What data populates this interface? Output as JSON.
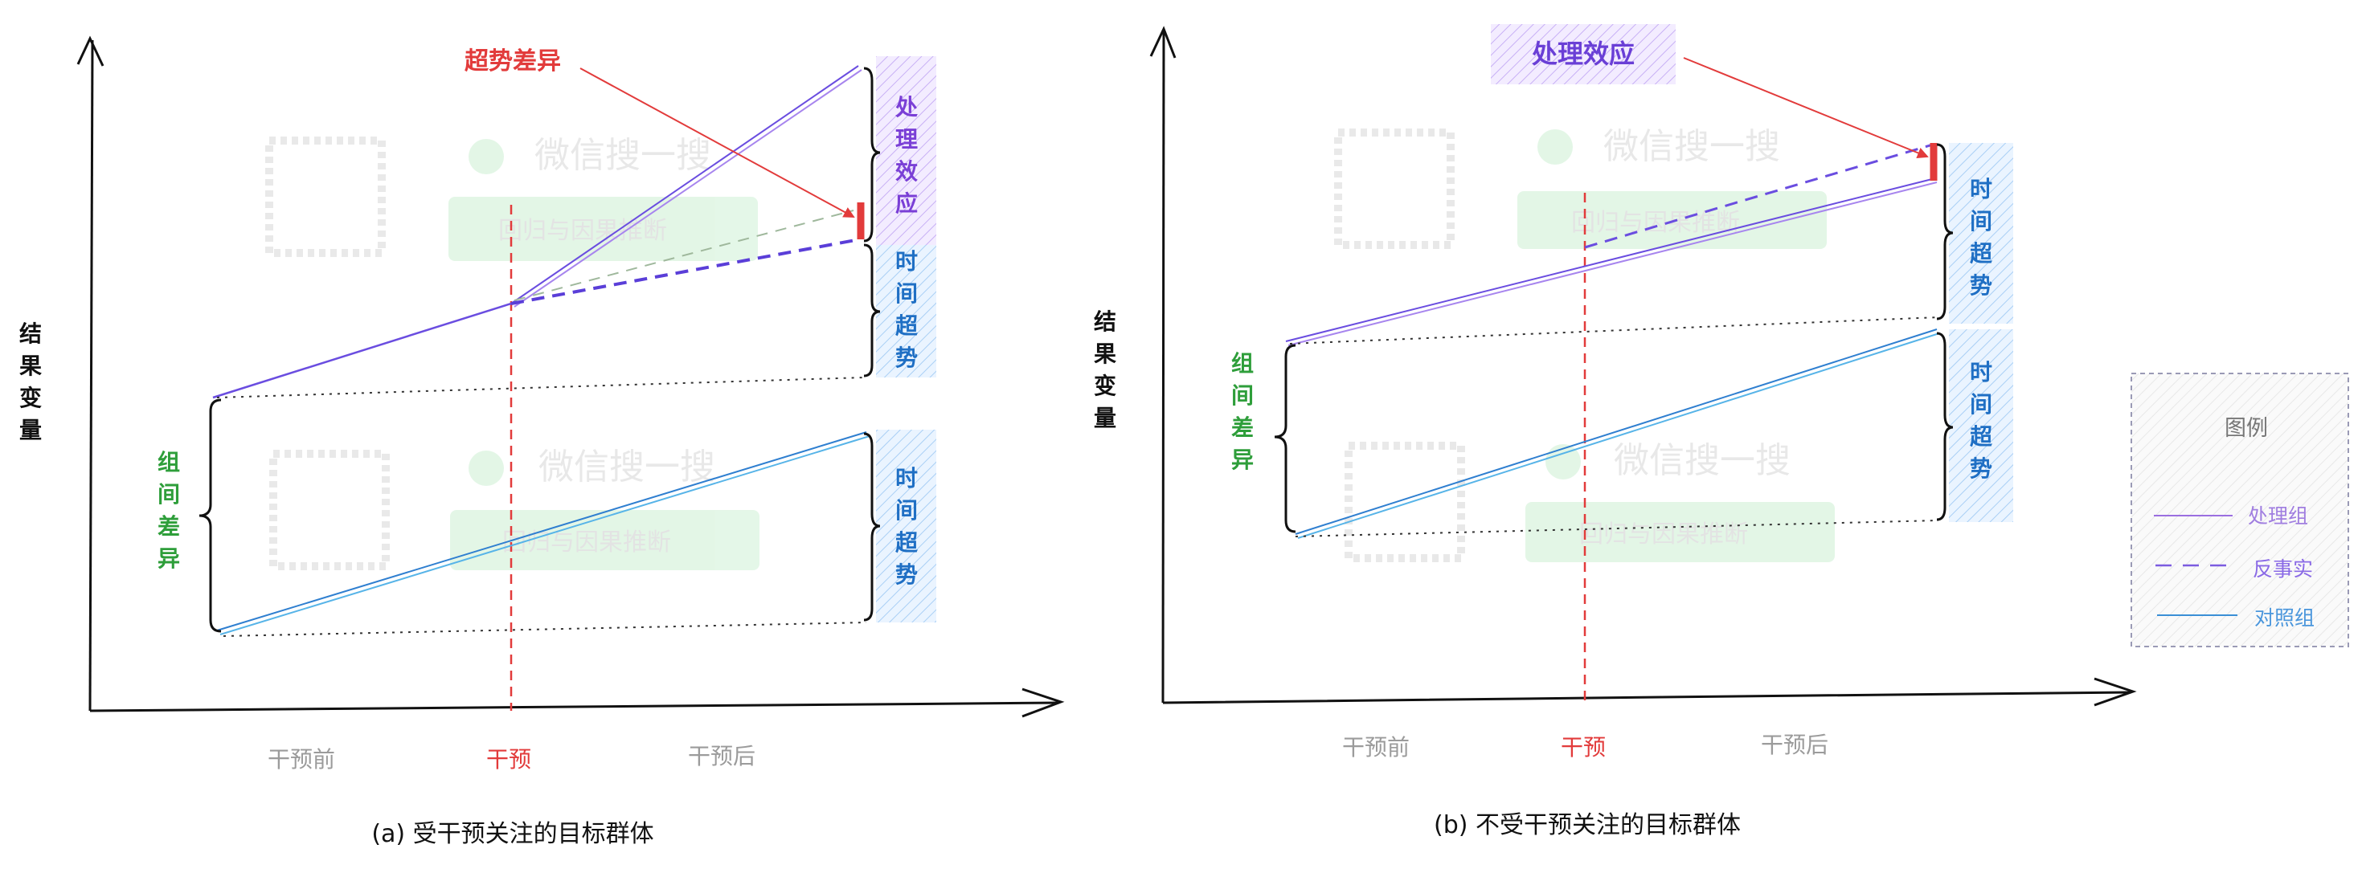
{
  "left_panel": {
    "caption": "(a) 受干预关注的目标群体",
    "y_axis_label": "结果变量",
    "x_ticks": {
      "before": "干预前",
      "intervention": "干预",
      "after": "干预后"
    },
    "annotation_trend_diff": "超势差异",
    "brace_treatment_effect": "处理效应",
    "brace_time_trend_upper": "时间超势",
    "brace_time_trend_lower": "时间超势",
    "brace_group_diff": "组间差异"
  },
  "right_panel": {
    "caption": "(b) 不受干预关注的目标群体",
    "y_axis_label": "结果变量",
    "x_ticks": {
      "before": "干预前",
      "intervention": "干预",
      "after": "干预后"
    },
    "annotation_treatment_effect": "处理效应",
    "brace_time_trend_upper": "时间超势",
    "brace_time_trend_lower": "时间超势",
    "brace_group_diff": "组间差异"
  },
  "legend": {
    "title": "图例",
    "items": [
      {
        "label": "处理组",
        "style": "solid",
        "color": "#9b6fe0"
      },
      {
        "label": "反事实",
        "style": "dashed",
        "color": "#7c5ce0"
      },
      {
        "label": "对照组",
        "style": "solid",
        "color": "#3a8fd6"
      }
    ]
  },
  "colors": {
    "treatment": "#6a4de0",
    "control": "#2f7fd0",
    "intervention_line": "#e23b3b",
    "group_diff_text": "#2e9e3a",
    "time_trend_text": "#1f6fc4",
    "treatment_effect_text": "#7a3fd6",
    "bracket": "#111111"
  },
  "watermark": {
    "brand": "微信搜一搜",
    "search_text": "回归与因果推断"
  }
}
